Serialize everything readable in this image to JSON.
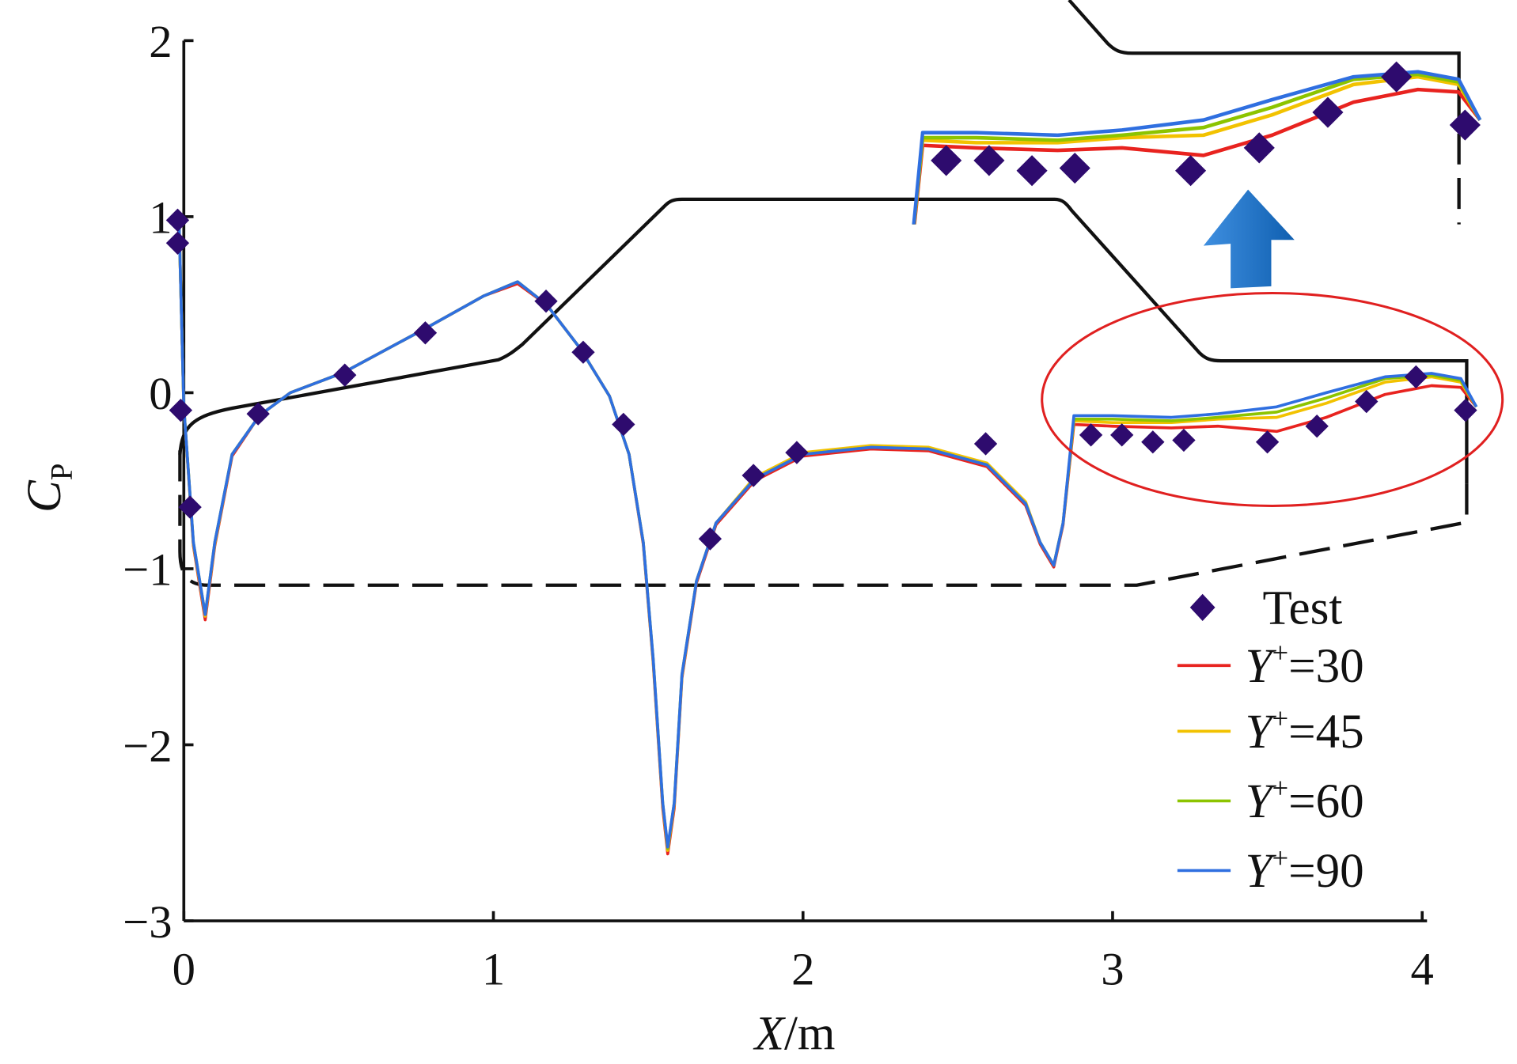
{
  "chart_data": {
    "type": "line",
    "title": "",
    "xlabel": "X/m",
    "xlabel_var": "X",
    "xlabel_unit": "/m",
    "ylabel": "C_P",
    "ylabel_var": "C",
    "ylabel_sub": "P",
    "xlim": [
      0,
      4
    ],
    "ylim": [
      -3,
      2
    ],
    "xticks": [
      "0",
      "1",
      "2",
      "3",
      "4"
    ],
    "yticks": [
      "2",
      "1",
      "0",
      "−1",
      "−2",
      "−3"
    ],
    "ytick_values": [
      2,
      1,
      0,
      -1,
      -2,
      -3
    ],
    "xtick_values": [
      0,
      1,
      2,
      3,
      4
    ],
    "grid": false,
    "legend_position": "bottom-right",
    "x": [
      -0.015,
      0,
      0.031,
      0.069,
      0.1,
      0.156,
      0.244,
      0.344,
      0.516,
      0.775,
      0.969,
      1.078,
      1.172,
      1.281,
      1.375,
      1.438,
      1.484,
      1.516,
      1.547,
      1.563,
      1.584,
      1.609,
      1.656,
      1.719,
      1.844,
      2.0,
      2.219,
      2.406,
      2.594,
      2.719,
      2.766,
      2.81,
      2.84,
      2.875,
      3.0,
      3.19,
      3.34,
      3.53,
      3.69,
      3.88,
      4.03,
      4.125,
      4.175
    ],
    "series": [
      {
        "name": "Y+=30",
        "label_var": "Y",
        "label_sup": "+",
        "label_rest": "=30",
        "color": "#e8231f",
        "values": [
          0.95,
          -0.08,
          -0.87,
          -1.29,
          -0.87,
          -0.36,
          -0.13,
          0.0,
          0.115,
          0.36,
          0.55,
          0.62,
          0.5,
          0.25,
          -0.02,
          -0.35,
          -0.86,
          -1.53,
          -2.36,
          -2.62,
          -2.36,
          -1.62,
          -1.08,
          -0.75,
          -0.5,
          -0.36,
          -0.32,
          -0.33,
          -0.42,
          -0.64,
          -0.86,
          -0.99,
          -0.75,
          -0.18,
          -0.19,
          -0.2,
          -0.19,
          -0.22,
          -0.14,
          -0.01,
          0.04,
          0.03,
          -0.08
        ]
      },
      {
        "name": "Y+=45",
        "label_var": "Y",
        "label_sup": "+",
        "label_rest": "=45",
        "color": "#f2c200",
        "values": [
          0.95,
          -0.08,
          -0.86,
          -1.27,
          -0.86,
          -0.35,
          -0.13,
          0.0,
          0.115,
          0.36,
          0.55,
          0.63,
          0.5,
          0.25,
          -0.02,
          -0.35,
          -0.85,
          -1.52,
          -2.34,
          -2.6,
          -2.34,
          -1.61,
          -1.07,
          -0.74,
          -0.48,
          -0.34,
          -0.3,
          -0.31,
          -0.4,
          -0.62,
          -0.85,
          -0.98,
          -0.74,
          -0.16,
          -0.17,
          -0.17,
          -0.15,
          -0.14,
          -0.06,
          0.06,
          0.09,
          0.06,
          -0.08
        ]
      },
      {
        "name": "Y+=60",
        "label_var": "Y",
        "label_sup": "+",
        "label_rest": "=60",
        "color": "#8cc400",
        "values": [
          0.95,
          -0.08,
          -0.85,
          -1.26,
          -0.85,
          -0.35,
          -0.13,
          0.0,
          0.115,
          0.36,
          0.55,
          0.63,
          0.5,
          0.25,
          -0.02,
          -0.35,
          -0.85,
          -1.51,
          -2.33,
          -2.59,
          -2.33,
          -1.6,
          -1.07,
          -0.74,
          -0.49,
          -0.35,
          -0.31,
          -0.32,
          -0.41,
          -0.63,
          -0.85,
          -0.98,
          -0.74,
          -0.15,
          -0.15,
          -0.16,
          -0.14,
          -0.11,
          -0.03,
          0.08,
          0.1,
          0.07,
          -0.08
        ]
      },
      {
        "name": "Y+=90",
        "label_var": "Y",
        "label_sup": "+",
        "label_rest": "=90",
        "color": "#2f6fe0",
        "values": [
          0.95,
          -0.08,
          -0.85,
          -1.26,
          -0.85,
          -0.35,
          -0.13,
          0.0,
          0.115,
          0.36,
          0.55,
          0.63,
          0.5,
          0.25,
          -0.02,
          -0.35,
          -0.85,
          -1.51,
          -2.33,
          -2.58,
          -2.33,
          -1.6,
          -1.07,
          -0.74,
          -0.49,
          -0.35,
          -0.31,
          -0.32,
          -0.41,
          -0.63,
          -0.85,
          -0.98,
          -0.74,
          -0.13,
          -0.13,
          -0.14,
          -0.12,
          -0.08,
          0.0,
          0.09,
          0.11,
          0.08,
          -0.08
        ]
      }
    ],
    "test": {
      "name": "Test",
      "color": "#2e0b6e",
      "x": [
        -0.02,
        -0.02,
        -0.01,
        0.02,
        0.24,
        0.52,
        0.78,
        1.17,
        1.29,
        1.42,
        1.7,
        1.84,
        1.98,
        2.59,
        2.93,
        3.03,
        3.13,
        3.23,
        3.5,
        3.66,
        3.82,
        3.98,
        4.14
      ],
      "y": [
        0.98,
        0.85,
        -0.1,
        -0.65,
        -0.12,
        0.1,
        0.34,
        0.52,
        0.23,
        -0.18,
        -0.83,
        -0.47,
        -0.34,
        -0.29,
        -0.24,
        -0.24,
        -0.28,
        -0.27,
        -0.28,
        -0.19,
        -0.05,
        0.09,
        -0.1
      ]
    },
    "inset": {
      "description_x_range": [
        2.85,
        4.18
      ],
      "highlight_color": "#e02020",
      "arrow_color": "#1a6fc4"
    }
  }
}
